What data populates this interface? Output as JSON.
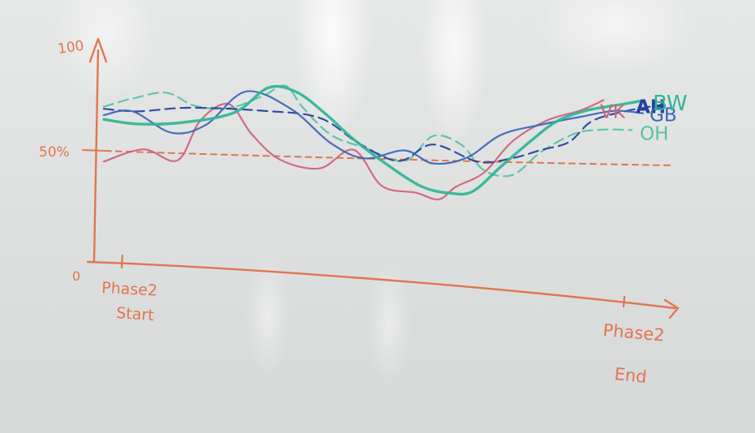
{
  "chart_data": {
    "type": "line",
    "ylabel_top": "100",
    "ylabel_origin": "0",
    "ylim": [
      0,
      100
    ],
    "reference": {
      "label": "50%",
      "value": 50
    },
    "x_start_label": [
      "Phase2",
      "Start"
    ],
    "x_end_label": [
      "Phase2",
      "End"
    ],
    "xlim": [
      0,
      100
    ],
    "grid": false,
    "colors": {
      "axis": "#e0764e",
      "AH": "#2440a0",
      "BW": "#2fb595",
      "VK": "#d0607a",
      "GB": "#3a64b8",
      "OH": "#55c2a5"
    },
    "series": [
      {
        "name": "AH",
        "style": "dashed",
        "x": [
          0,
          6,
          15,
          28,
          38,
          45,
          52,
          58,
          66,
          72,
          77,
          82,
          86,
          92,
          98
        ],
        "y": [
          73,
          72,
          74,
          73,
          70,
          58,
          50,
          58,
          50,
          52,
          56,
          60,
          70,
          75,
          78
        ]
      },
      {
        "name": "BW",
        "style": "solid",
        "x": [
          0,
          6,
          14,
          23,
          29,
          34,
          39,
          44,
          50,
          56,
          61,
          65,
          70,
          76,
          80,
          85,
          91,
          95
        ],
        "y": [
          68,
          66,
          67,
          72,
          84,
          82,
          72,
          60,
          48,
          38,
          35,
          36,
          48,
          62,
          70,
          75,
          78,
          80
        ]
      },
      {
        "name": "VK",
        "style": "solid",
        "x": [
          0,
          7,
          13,
          17,
          22,
          26,
          31,
          38,
          44,
          49,
          55,
          59,
          62,
          67,
          72,
          78,
          84,
          88
        ],
        "y": [
          48,
          54,
          49,
          68,
          76,
          62,
          50,
          46,
          55,
          38,
          35,
          32,
          38,
          45,
          60,
          70,
          75,
          80
        ]
      },
      {
        "name": "GB",
        "style": "solid",
        "x": [
          0,
          5,
          12,
          18,
          25,
          33,
          40,
          46,
          53,
          58,
          64,
          70,
          77,
          84,
          90,
          95
        ],
        "y": [
          70,
          72,
          62,
          66,
          82,
          74,
          58,
          51,
          55,
          49,
          52,
          63,
          68,
          72,
          75,
          74
        ]
      },
      {
        "name": "OH",
        "style": "dashed",
        "x": [
          0,
          5,
          11,
          16,
          22,
          28,
          32,
          35,
          40,
          46,
          53,
          58,
          63,
          67,
          72,
          77,
          83,
          88,
          93
        ],
        "y": [
          74,
          78,
          81,
          75,
          74,
          80,
          85,
          75,
          62,
          56,
          50,
          62,
          58,
          46,
          44,
          55,
          64,
          66,
          66
        ]
      }
    ]
  }
}
